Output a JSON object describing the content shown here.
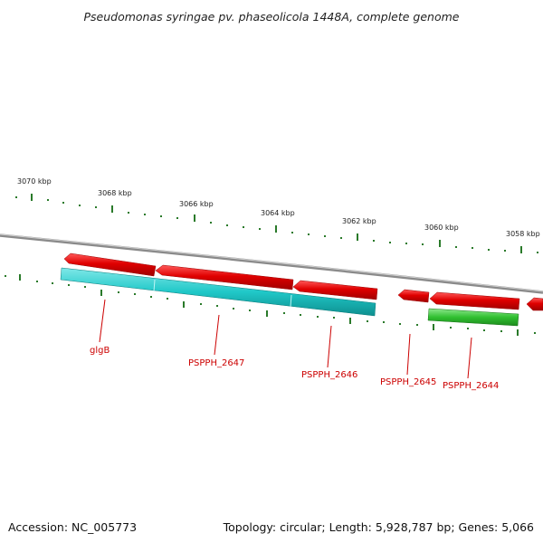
{
  "title": "Pseudomonas syringae pv. phaseolicola 1448A, complete genome",
  "footer": {
    "accession": "Accession: NC_005773",
    "summary": "Topology: circular; Length: 5,928,787 bp; Genes: 5,066"
  },
  "colors": {
    "backbone": "#8a8a8a",
    "reverse_strand_gene": "#e00000",
    "cds_cyan": "#20c8c8",
    "cds_green": "#30c030",
    "tick": "#2a7a2a",
    "label": "#cc0000"
  },
  "scale_labels": [
    "3070 kbp",
    "3068 kbp",
    "3066 kbp",
    "3064 kbp",
    "3062 kbp",
    "3060 kbp",
    "3058 kbp"
  ],
  "gene_labels": [
    "glgB",
    "PSPPH_2647",
    "PSPPH_2646",
    "PSPPH_2645",
    "PSPPH_2644"
  ]
}
